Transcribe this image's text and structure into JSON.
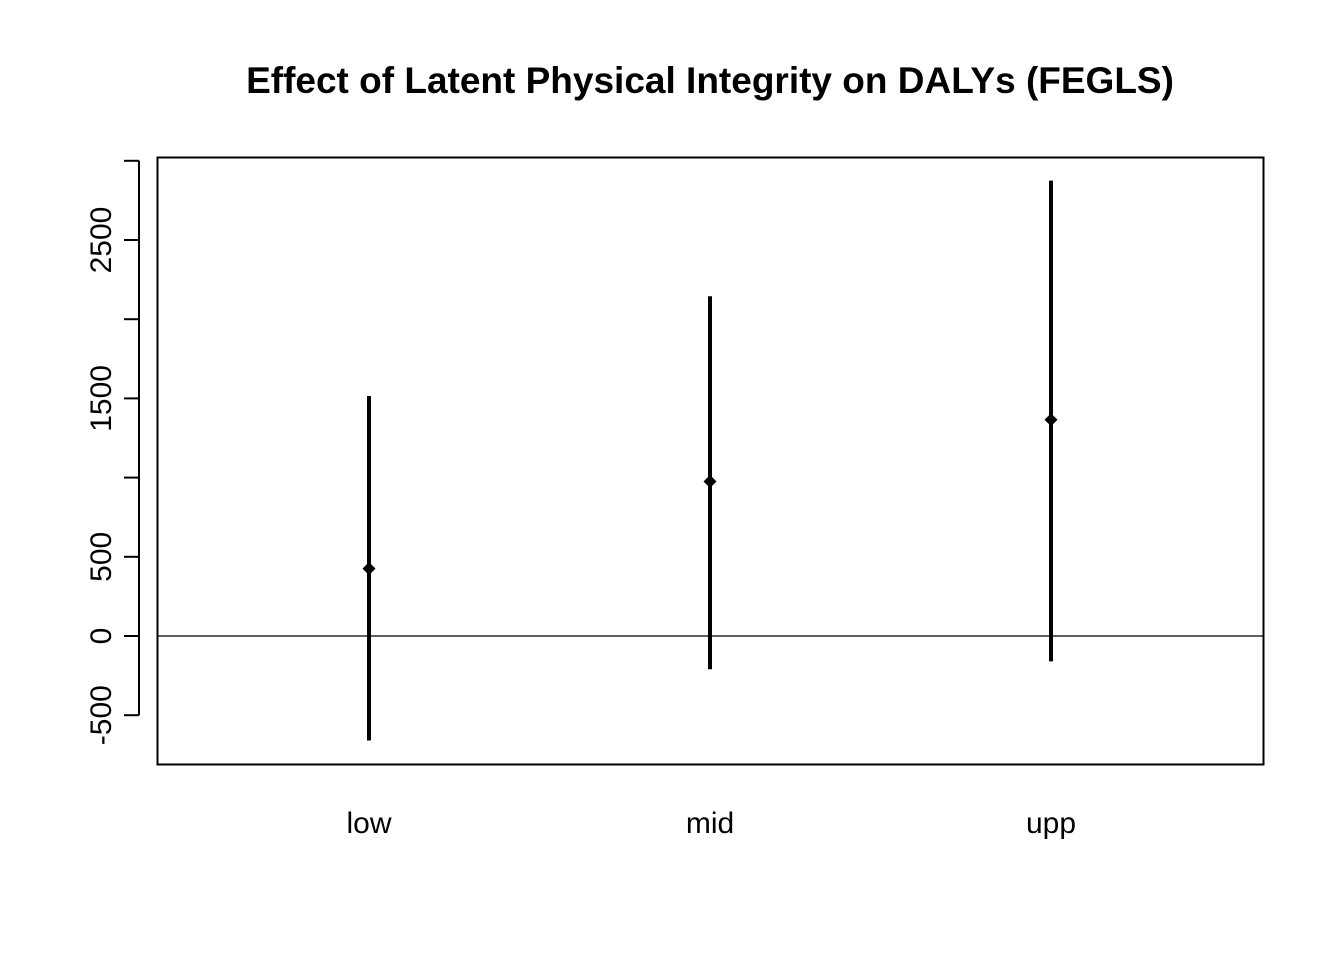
{
  "chart_data": {
    "type": "errorbar",
    "title": "Effect of Latent Physical Integrity on DALYs (FEGLS)",
    "xlabel": "",
    "ylabel": "",
    "categories": [
      "low",
      "mid",
      "upp"
    ],
    "estimates": [
      425,
      975,
      1365
    ],
    "lower": [
      -660,
      -210,
      -160
    ],
    "upper": [
      1515,
      2145,
      2875
    ],
    "ylim": [
      -800,
      3000
    ],
    "yticks": [
      -500,
      0,
      500,
      1000,
      1500,
      2000,
      2500,
      3000
    ],
    "yticklabels": [
      "-500",
      "0",
      "500",
      "",
      "1500",
      "",
      "2500",
      ""
    ],
    "reference_line": 0,
    "grid": false,
    "legend": "none",
    "colors": {
      "marks": "#000000",
      "background": "#ffffff"
    }
  }
}
